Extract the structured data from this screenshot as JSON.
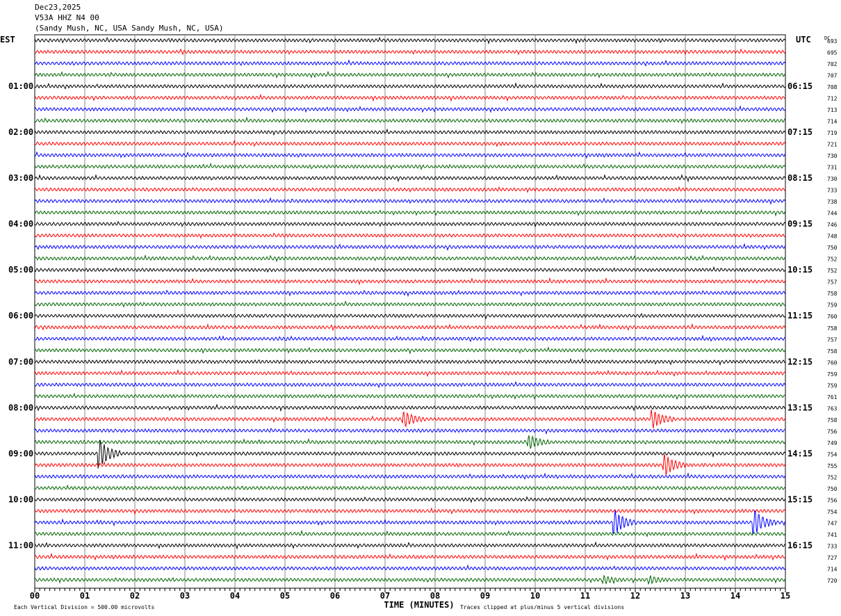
{
  "header": {
    "date": "Dec23,2025",
    "channel": "V53A HHZ N4 00",
    "location": "(Sandy Mush, NC, USA Sandy Mush, NC, USA)"
  },
  "chart_data": {
    "type": "line",
    "subtype": "helicorder",
    "left_timezone": "EST",
    "right_timezone": "UTC",
    "dc_header": "DC",
    "xlabel": "TIME (MINUTES)",
    "xlim": [
      0,
      15
    ],
    "x_ticks": [
      "00",
      "01",
      "02",
      "03",
      "04",
      "05",
      "06",
      "07",
      "08",
      "09",
      "10",
      "11",
      "12",
      "13",
      "14",
      "15"
    ],
    "left_hour_labels": [
      "01:00",
      "02:00",
      "03:00",
      "04:00",
      "05:00",
      "06:00",
      "07:00",
      "08:00",
      "09:00",
      "10:00",
      "11:00"
    ],
    "right_hour_labels": [
      "06:15",
      "07:15",
      "08:15",
      "09:15",
      "10:15",
      "11:15",
      "12:15",
      "13:15",
      "14:15",
      "15:15",
      "16:15"
    ],
    "trace_colors": [
      "#000000",
      "#ff0000",
      "#0000ff",
      "#006400"
    ],
    "dc_offsets": [
      693,
      695,
      702,
      707,
      708,
      712,
      713,
      714,
      719,
      721,
      730,
      731,
      730,
      733,
      738,
      744,
      746,
      748,
      750,
      752,
      752,
      757,
      758,
      759,
      760,
      758,
      757,
      758,
      760,
      759,
      759,
      761,
      763,
      758,
      756,
      749,
      754,
      755,
      752,
      750,
      756,
      754,
      747,
      741,
      733,
      727,
      714,
      720
    ],
    "events": [
      {
        "trace": 33,
        "minute": 7.4,
        "amplitude": 1.2
      },
      {
        "trace": 33,
        "minute": 12.35,
        "amplitude": 1.5
      },
      {
        "trace": 35,
        "minute": 9.9,
        "amplitude": 1.0
      },
      {
        "trace": 36,
        "minute": 1.3,
        "amplitude": 2.5
      },
      {
        "trace": 37,
        "minute": 12.6,
        "amplitude": 1.8
      },
      {
        "trace": 42,
        "minute": 11.6,
        "amplitude": 2.0
      },
      {
        "trace": 42,
        "minute": 14.4,
        "amplitude": 2.0
      },
      {
        "trace": 47,
        "minute": 11.4,
        "amplitude": 0.5
      },
      {
        "trace": 47,
        "minute": 12.3,
        "amplitude": 0.5
      }
    ],
    "footer_scale": "Each Vertical Division =  500.00 microvolts",
    "footer_clip": "Traces clipped at plus/minus 5 vertical divisions"
  }
}
